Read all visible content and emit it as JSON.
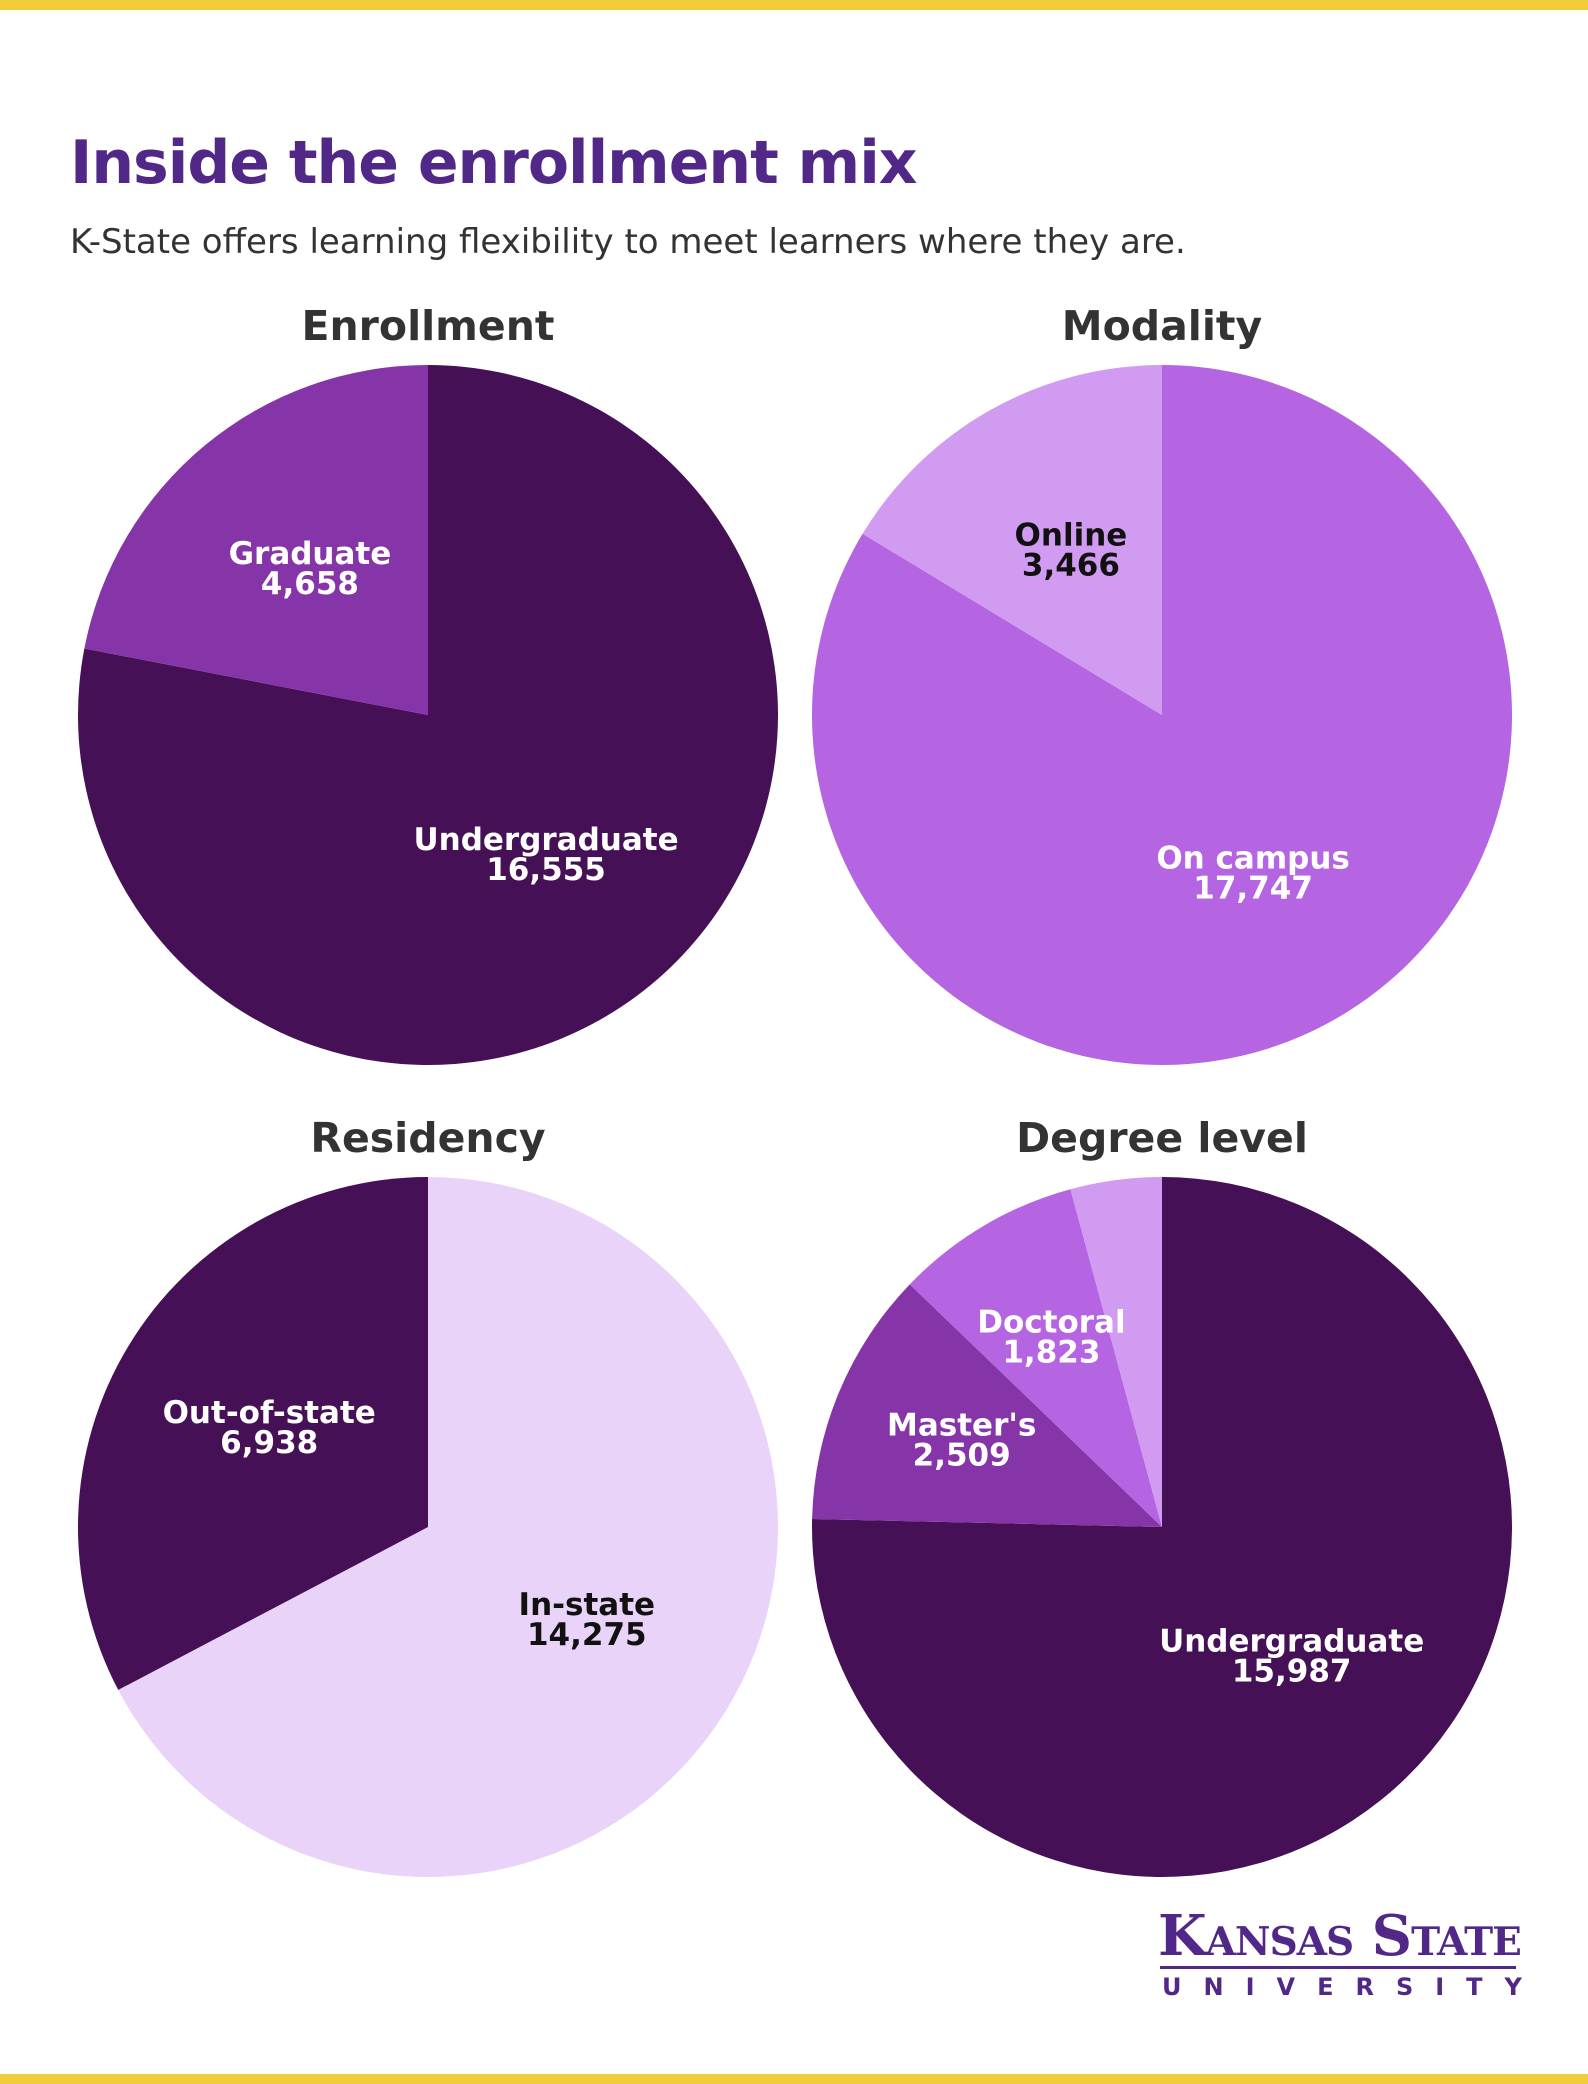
{
  "header": {
    "title": "Inside the enrollment mix",
    "subtitle": "K-State offers learning flexibility to meet learners where they are."
  },
  "colors": {
    "accent_bar": "#f2cd3b",
    "title": "#512888",
    "dark_purple": "#451055",
    "mid_purple": "#8535a8",
    "bright_purple": "#b564e2",
    "light_purple": "#d19bf2",
    "pale_purple": "#ead3f8"
  },
  "logo": {
    "line1": "Kansas State",
    "line2": "UNIVERSITY"
  },
  "chart_data": [
    {
      "type": "pie",
      "title": "Enrollment",
      "slices": [
        {
          "label": "Undergraduate",
          "value": 16555,
          "display": "16,555",
          "color": "#451055",
          "text_color": "#ffffff"
        },
        {
          "label": "Graduate",
          "value": 4658,
          "display": "4,658",
          "color": "#8535a8",
          "text_color": "#ffffff"
        }
      ]
    },
    {
      "type": "pie",
      "title": "Modality",
      "slices": [
        {
          "label": "On campus",
          "value": 17747,
          "display": "17,747",
          "color": "#b564e2",
          "text_color": "#ffffff"
        },
        {
          "label": "Online",
          "value": 3466,
          "display": "3,466",
          "color": "#d19bf2",
          "text_color": "#111111"
        }
      ]
    },
    {
      "type": "pie",
      "title": "Residency",
      "slices": [
        {
          "label": "In-state",
          "value": 14275,
          "display": "14,275",
          "color": "#ead3f8",
          "text_color": "#111111"
        },
        {
          "label": "Out-of-state",
          "value": 6938,
          "display": "6,938",
          "color": "#451055",
          "text_color": "#ffffff"
        }
      ]
    },
    {
      "type": "pie",
      "title": "Degree level",
      "slices": [
        {
          "label": "Undergraduate",
          "value": 15987,
          "display": "15,987",
          "color": "#451055",
          "text_color": "#ffffff"
        },
        {
          "label": "Master's",
          "value": 2509,
          "display": "2,509",
          "color": "#8535a8",
          "text_color": "#ffffff"
        },
        {
          "label": "Doctoral",
          "value": 1823,
          "display": "1,823",
          "color": "#b564e2",
          "text_color": "#ffffff"
        },
        {
          "label": "",
          "value": 894,
          "display": "",
          "color": "#d19bf2",
          "text_color": "#ffffff"
        }
      ]
    }
  ]
}
